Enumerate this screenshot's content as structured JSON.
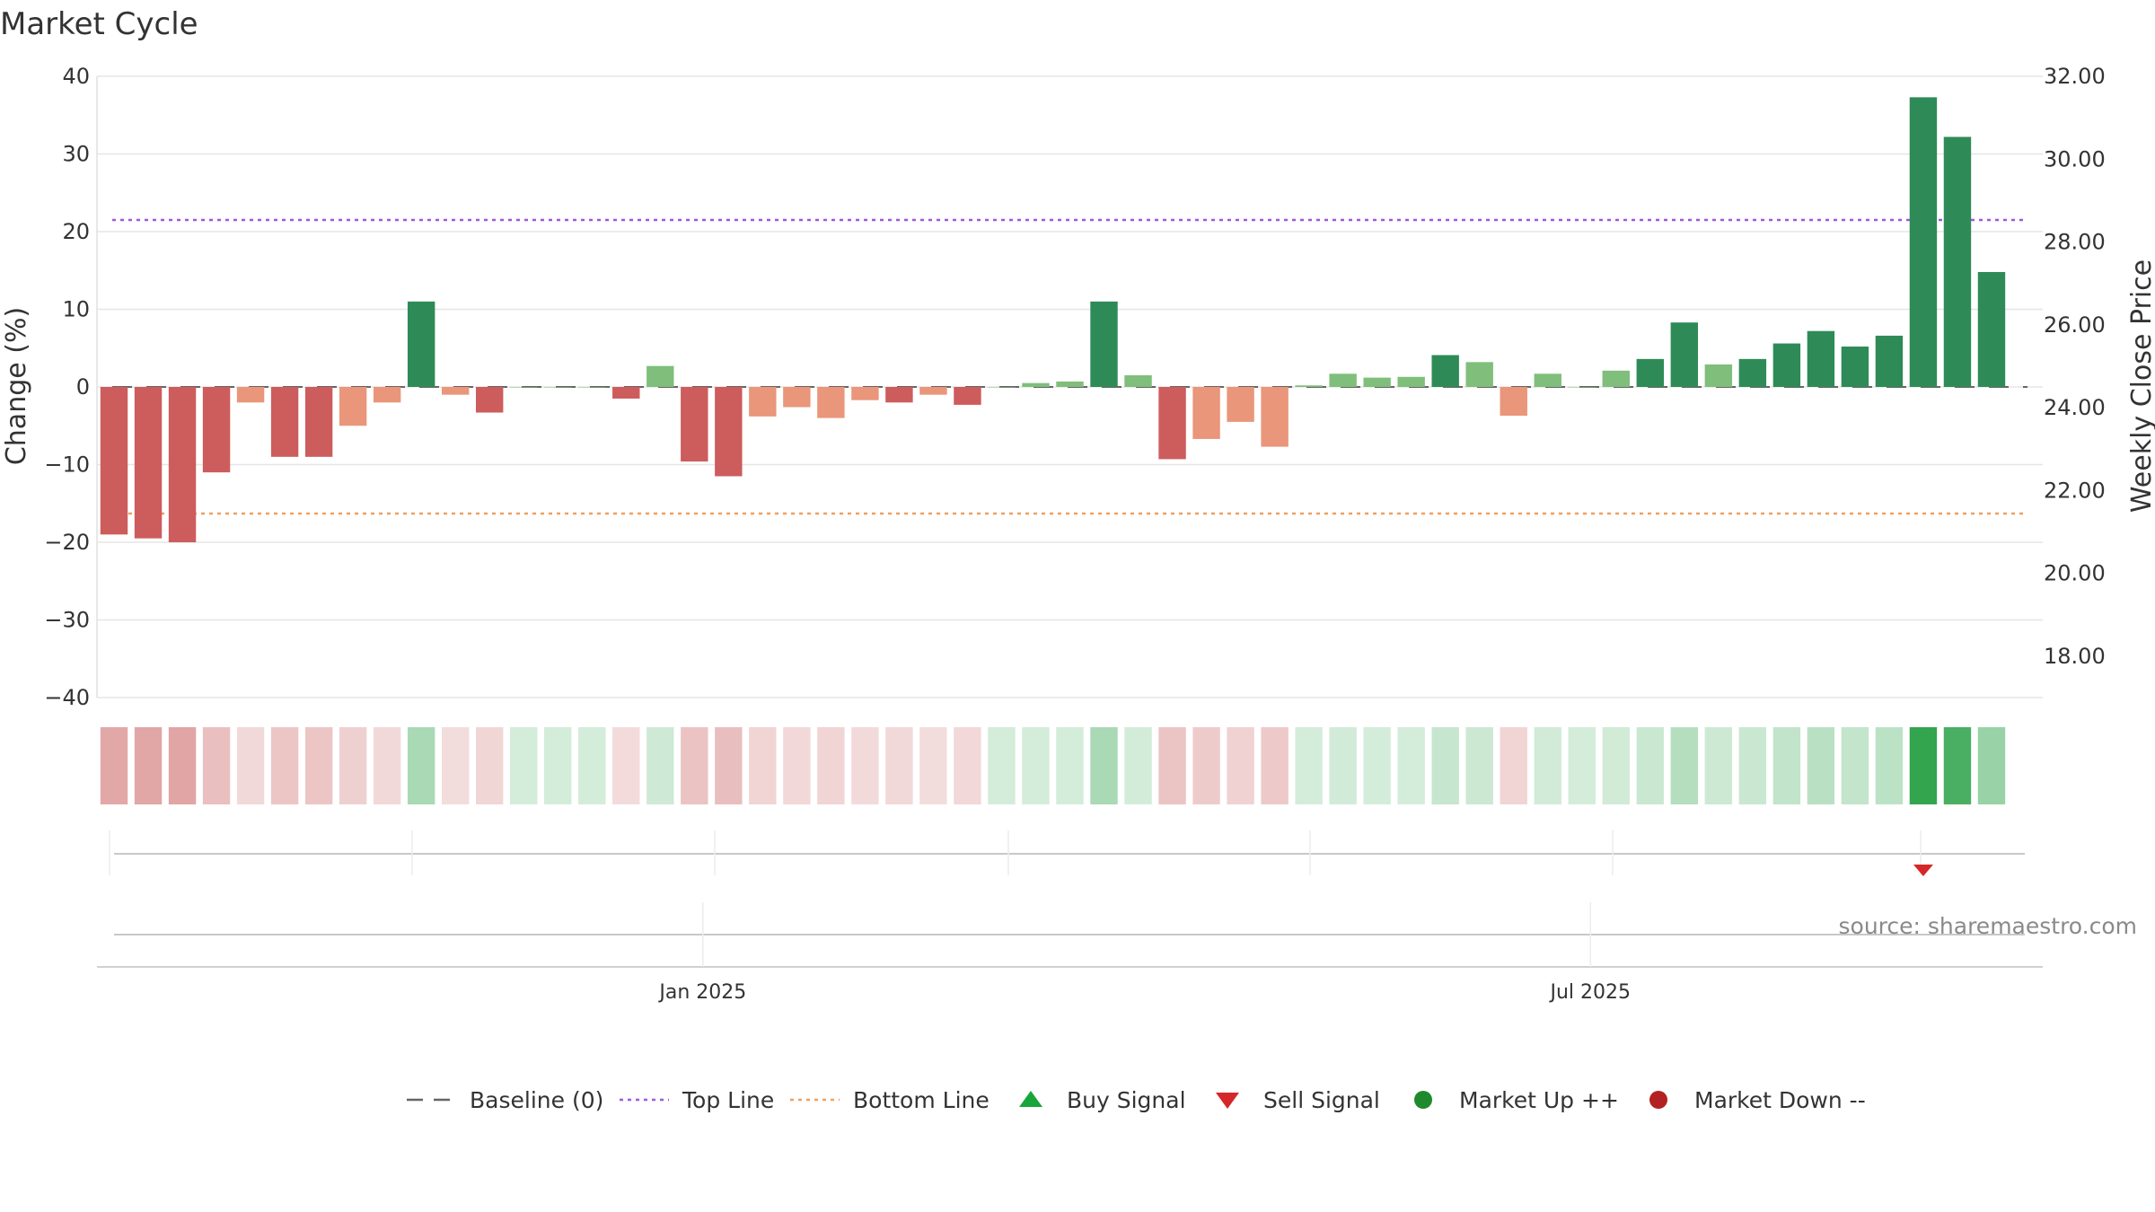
{
  "chart_data": {
    "type": "bar",
    "title": "Market Cycle",
    "ylabel": "Change (%)",
    "y2label": "Weekly Close Price",
    "ylim": [
      -40,
      40
    ],
    "y2lim": [
      17,
      32
    ],
    "yticks": [
      "40",
      "30",
      "20",
      "10",
      "0",
      "−10",
      "−20",
      "−30",
      "−40"
    ],
    "y2ticks": [
      "32.00",
      "30.00",
      "28.00",
      "26.00",
      "24.00",
      "22.00",
      "20.00",
      "18.00"
    ],
    "xticks": [
      "Jan 2025",
      "Jul 2025"
    ],
    "grid": true,
    "baseline": 0,
    "top_line": 21.5,
    "bottom_line": -16.3,
    "weeks": 57,
    "xtick_week_index": [
      17.75,
      43.75
    ],
    "values": [
      -19,
      -19.5,
      -20,
      -11,
      -2,
      -9,
      -9,
      -5,
      -2,
      11,
      -1,
      -3.3,
      0,
      0,
      0,
      -1.5,
      2.7,
      -9.6,
      -11.5,
      -3.8,
      -2.6,
      -4,
      -1.7,
      -2,
      -1,
      -2.3,
      0,
      0.5,
      0.7,
      11,
      1.5,
      -9.3,
      -6.7,
      -4.5,
      -7.7,
      0.2,
      1.7,
      1.2,
      1.3,
      4.1,
      3.2,
      -3.7,
      1.7,
      0,
      2.1,
      3.6,
      8.3,
      2.9,
      3.6,
      5.6,
      7.2,
      5.2,
      6.6,
      37.3,
      32.2,
      14.8
    ],
    "sell_signals": [
      53
    ],
    "buy_signals": [],
    "legend": [
      {
        "label": "Baseline (0)",
        "symbol": "dash",
        "color": "#666666"
      },
      {
        "label": "Top Line",
        "symbol": "dot",
        "color": "#9b59e0"
      },
      {
        "label": "Bottom Line",
        "symbol": "dot",
        "color": "#f0a060"
      },
      {
        "label": "Buy Signal",
        "symbol": "triangle-up",
        "color": "#1aa53a"
      },
      {
        "label": "Sell Signal",
        "symbol": "triangle-down",
        "color": "#d62728"
      },
      {
        "label": "Market Up ++",
        "symbol": "circle",
        "color": "#1f8a2c"
      },
      {
        "label": "Market Down --",
        "symbol": "circle",
        "color": "#b22222"
      }
    ],
    "colors": {
      "strong_down": "#cd5c5c",
      "mild_down": "#e9967a",
      "strong_up": "#2e8b57",
      "mild_up": "#7fbf7b",
      "top_line": "#9b59e0",
      "bottom_line": "#f0a060",
      "baseline": "#666666",
      "sell": "#d62728",
      "buy": "#1aa53a"
    },
    "source": "source: sharemaestro.com"
  }
}
